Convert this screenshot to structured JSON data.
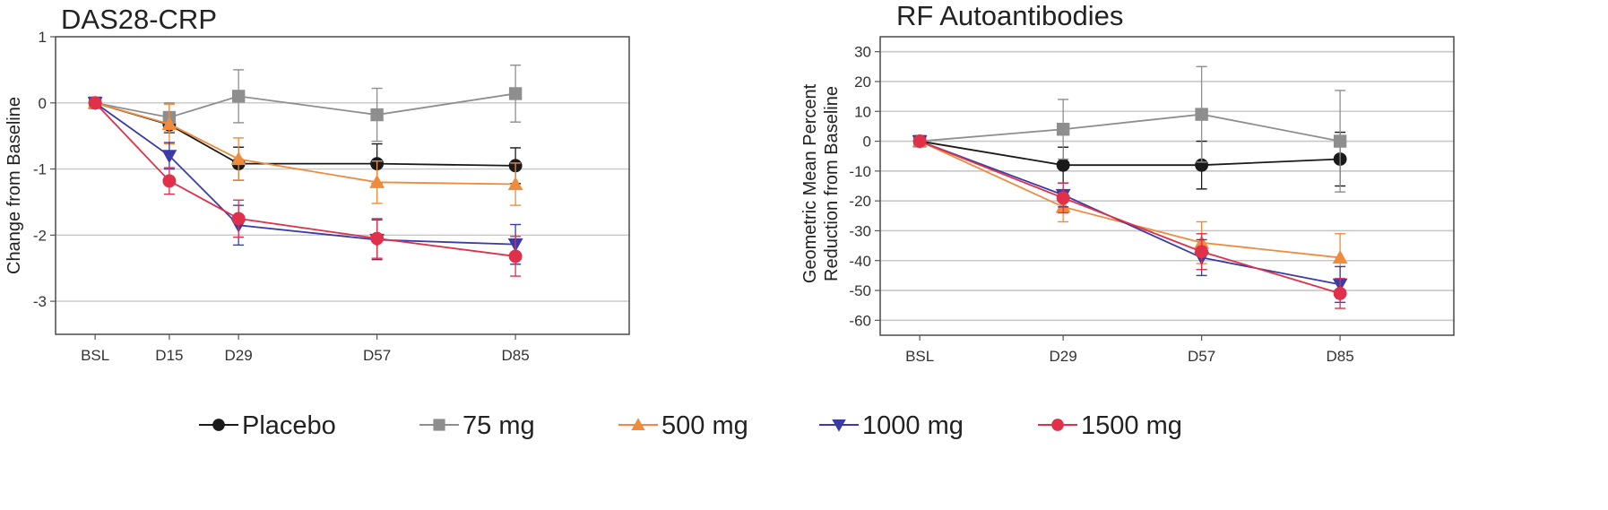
{
  "chart_data": [
    {
      "type": "line",
      "title": "DAS28-CRP",
      "xlabel": "",
      "ylabel": "Change from Baseline",
      "categories": [
        "BSL",
        "D15",
        "D29",
        "D57",
        "D85"
      ],
      "x": [
        0,
        15,
        29,
        57,
        85
      ],
      "ylim": [
        -3.5,
        1
      ],
      "yticks": [
        1,
        0,
        -1,
        -2,
        -3
      ],
      "grid": true,
      "series": [
        {
          "name": "Placebo",
          "color": "#1a1a1a",
          "marker": "circle",
          "values": [
            0,
            -0.33,
            -0.92,
            -0.92,
            -0.95
          ],
          "error": [
            0,
            0.12,
            0.25,
            0.3,
            0.27
          ]
        },
        {
          "name": "75 mg",
          "color": "#8e8e8e",
          "marker": "square",
          "values": [
            0,
            -0.22,
            0.1,
            -0.18,
            0.14
          ],
          "error": [
            0,
            0.22,
            0.4,
            0.4,
            0.43
          ]
        },
        {
          "name": "500 mg",
          "color": "#f08a3c",
          "marker": "triangle",
          "values": [
            0,
            -0.32,
            -0.85,
            -1.2,
            -1.23
          ],
          "error": [
            0,
            0.3,
            0.32,
            0.32,
            0.32
          ]
        },
        {
          "name": "1000 mg",
          "color": "#3a3aa8",
          "marker": "triangle-down",
          "values": [
            0,
            -0.8,
            -1.85,
            -2.07,
            -2.14
          ],
          "error": [
            0,
            0.2,
            0.3,
            0.3,
            0.3
          ]
        },
        {
          "name": "1500 mg",
          "color": "#e0304a",
          "marker": "circle",
          "values": [
            0,
            -1.18,
            -1.75,
            -2.05,
            -2.32
          ],
          "error": [
            0,
            0.2,
            0.28,
            0.3,
            0.3
          ]
        }
      ]
    },
    {
      "type": "line",
      "title": "RF Autoantibodies",
      "xlabel": "",
      "ylabel": "Geometric Mean Percent Reduction from Baseline",
      "ylabel_lines": [
        "Geometric Mean Percent",
        "Reduction from Baseline"
      ],
      "categories": [
        "BSL",
        "D29",
        "D57",
        "D85"
      ],
      "x": [
        0,
        29,
        57,
        85
      ],
      "ylim": [
        -65,
        35
      ],
      "yticks": [
        30,
        20,
        10,
        0,
        -10,
        -20,
        -30,
        -40,
        -50,
        -60
      ],
      "grid": true,
      "series": [
        {
          "name": "Placebo",
          "color": "#1a1a1a",
          "marker": "circle",
          "values": [
            0,
            -8,
            -8,
            -6
          ],
          "error": [
            0,
            6,
            8,
            9
          ]
        },
        {
          "name": "75 mg",
          "color": "#8e8e8e",
          "marker": "square",
          "values": [
            0,
            4,
            9,
            0
          ],
          "error": [
            0,
            10,
            16,
            17
          ]
        },
        {
          "name": "500 mg",
          "color": "#f08a3c",
          "marker": "triangle",
          "values": [
            0,
            -22,
            -34,
            -39
          ],
          "error": [
            0,
            5,
            7,
            8
          ]
        },
        {
          "name": "1000 mg",
          "color": "#3a3aa8",
          "marker": "triangle-down",
          "values": [
            0,
            -18,
            -39,
            -48
          ],
          "error": [
            0,
            4,
            6,
            6
          ]
        },
        {
          "name": "1500 mg",
          "color": "#e0304a",
          "marker": "circle",
          "values": [
            0,
            -19,
            -37,
            -51
          ],
          "error": [
            0,
            5,
            6,
            5
          ]
        }
      ]
    }
  ],
  "legend": {
    "position": "bottom",
    "items": [
      {
        "label": "Placebo",
        "color": "#1a1a1a",
        "marker": "circle"
      },
      {
        "label": "75 mg",
        "color": "#8e8e8e",
        "marker": "square"
      },
      {
        "label": "500 mg",
        "color": "#f08a3c",
        "marker": "triangle"
      },
      {
        "label": "1000 mg",
        "color": "#3a3aa8",
        "marker": "triangle-down"
      },
      {
        "label": "1500 mg",
        "color": "#e0304a",
        "marker": "circle"
      }
    ]
  }
}
